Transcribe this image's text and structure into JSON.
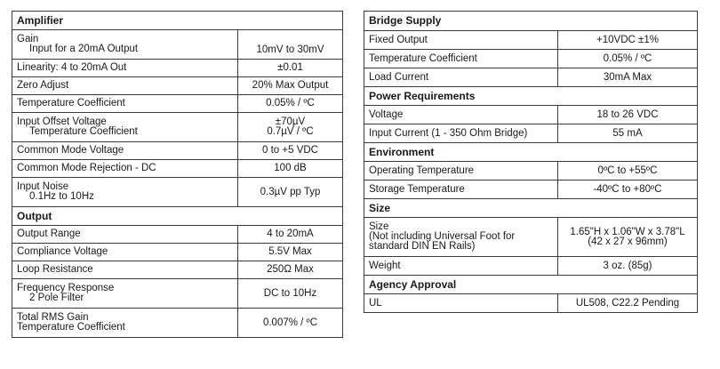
{
  "amplifier": {
    "title": "Amplifier",
    "rows": [
      {
        "label": [
          "Gain",
          "Input for a 20mA Output"
        ],
        "value": [
          "",
          "10mV to 30mV"
        ]
      },
      {
        "label": [
          "Linearity: 4 to 20mA Out"
        ],
        "value": [
          "±0.01"
        ]
      },
      {
        "label": [
          "Zero Adjust"
        ],
        "value": [
          "20% Max Output"
        ]
      },
      {
        "label": [
          "Temperature Coefficient"
        ],
        "value": [
          "0.05% / ºC"
        ]
      },
      {
        "label": [
          "Input Offset Voltage",
          "Temperature Coefficient"
        ],
        "value": [
          "±70µV",
          "0.7µV / ºC"
        ]
      },
      {
        "label": [
          "Common Mode Voltage"
        ],
        "value": [
          "0 to +5 VDC"
        ]
      },
      {
        "label": [
          "Common Mode Rejection - DC"
        ],
        "value": [
          "100 dB"
        ]
      },
      {
        "label": [
          "Input Noise",
          "0.1Hz to 10Hz"
        ],
        "value": [
          "0.3µV pp Typ"
        ]
      }
    ]
  },
  "output": {
    "title": "Output",
    "rows": [
      {
        "label": [
          "Output Range"
        ],
        "value": [
          "4 to 20mA"
        ]
      },
      {
        "label": [
          "Compliance Voltage"
        ],
        "value": [
          "5.5V Max"
        ]
      },
      {
        "label": [
          "Loop Resistance"
        ],
        "value": [
          "250Ω Max"
        ]
      },
      {
        "label": [
          "Frequency Response",
          "2 Pole Filter"
        ],
        "value": [
          "DC to 10Hz"
        ]
      },
      {
        "label": [
          "Total RMS Gain",
          "Temperature Coefficient"
        ],
        "value": [
          "0.007% / ºC"
        ]
      }
    ]
  },
  "bridge_supply": {
    "title": "Bridge Supply",
    "rows": [
      {
        "label": [
          "Fixed Output"
        ],
        "value": [
          "+10VDC ±1%"
        ]
      },
      {
        "label": [
          "Temperature Coefficient"
        ],
        "value": [
          "0.05% / ºC"
        ]
      },
      {
        "label": [
          "Load Current"
        ],
        "value": [
          "30mA Max"
        ]
      }
    ]
  },
  "power_requirements": {
    "title": "Power Requirements",
    "rows": [
      {
        "label": [
          "Voltage"
        ],
        "value": [
          "18 to 26 VDC"
        ]
      },
      {
        "label": [
          "Input Current (1 - 350 Ohm Bridge)"
        ],
        "value": [
          "55 mA"
        ]
      }
    ]
  },
  "environment": {
    "title": "Environment",
    "rows": [
      {
        "label": [
          "Operating Temperature"
        ],
        "value": [
          "0ºC to +55ºC"
        ]
      },
      {
        "label": [
          "Storage Temperature"
        ],
        "value": [
          "-40ºC to +80ºC"
        ]
      }
    ]
  },
  "size": {
    "title": "Size",
    "rows": [
      {
        "label": [
          "Size",
          "(Not including Universal Foot for",
          "standard DIN EN Rails)"
        ],
        "value": [
          "1.65\"H x 1.06\"W x 3.78\"L",
          "(42 x 27 x 96mm)"
        ]
      },
      {
        "label": [
          "Weight"
        ],
        "value": [
          "3 oz. (85g)"
        ]
      }
    ]
  },
  "agency_approval": {
    "title": "Agency Approval",
    "rows": [
      {
        "label": [
          "UL"
        ],
        "value": [
          "UL508, C22.2 Pending"
        ]
      }
    ]
  }
}
